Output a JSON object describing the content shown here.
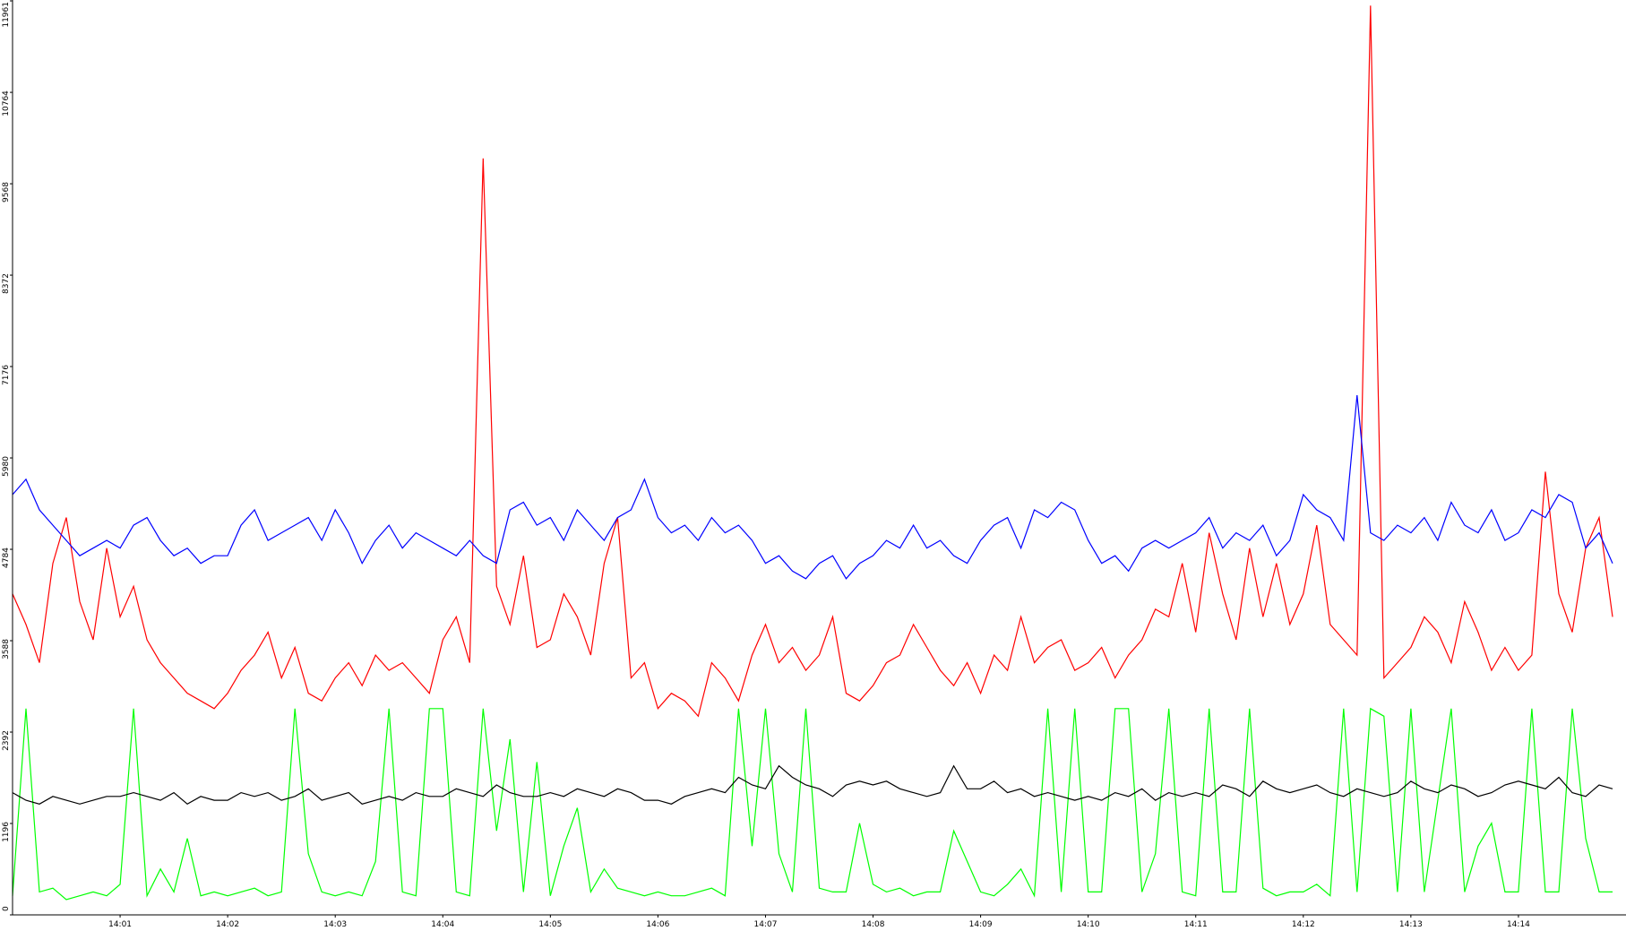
{
  "chart_data": {
    "type": "line",
    "categories": [
      null,
      null,
      null,
      null,
      null,
      null,
      null,
      null,
      "14:01",
      null,
      null,
      null,
      null,
      null,
      null,
      null,
      "14:02",
      null,
      null,
      null,
      null,
      null,
      null,
      null,
      "14:03",
      null,
      null,
      null,
      null,
      null,
      null,
      null,
      "14:04",
      null,
      null,
      null,
      null,
      null,
      null,
      null,
      "14:05",
      null,
      null,
      null,
      null,
      null,
      null,
      null,
      "14:06",
      null,
      null,
      null,
      null,
      null,
      null,
      null,
      "14:07",
      null,
      null,
      null,
      null,
      null,
      null,
      null,
      "14:08",
      null,
      null,
      null,
      null,
      null,
      null,
      null,
      "14:09",
      null,
      null,
      null,
      null,
      null,
      null,
      null,
      "14:10",
      null,
      null,
      null,
      null,
      null,
      null,
      null,
      "14:11",
      null,
      null,
      null,
      null,
      null,
      null,
      null,
      "14:12",
      null,
      null,
      null,
      null,
      null,
      null,
      null,
      "14:13",
      null,
      null,
      null,
      null,
      null,
      null,
      null,
      "14:14",
      null,
      null,
      null,
      null,
      null,
      null,
      null
    ],
    "series": [
      {
        "color": "#00ff00",
        "values": [
          250,
          2700,
          300,
          350,
          200,
          250,
          300,
          250,
          400,
          2700,
          250,
          600,
          300,
          1000,
          250,
          300,
          250,
          300,
          350,
          250,
          300,
          2700,
          800,
          300,
          250,
          300,
          250,
          700,
          2700,
          300,
          250,
          2700,
          2700,
          300,
          250,
          2700,
          1100,
          2300,
          300,
          2000,
          250,
          900,
          1400,
          300,
          600,
          350,
          300,
          250,
          300,
          250,
          250,
          300,
          350,
          250,
          2700,
          900,
          2700,
          800,
          300,
          2700,
          350,
          300,
          300,
          1200,
          400,
          300,
          350,
          250,
          300,
          300,
          1100,
          700,
          300,
          250,
          400,
          600,
          250,
          2700,
          300,
          2700,
          300,
          300,
          2700,
          2700,
          300,
          800,
          2700,
          300,
          250,
          2700,
          300,
          300,
          2700,
          350,
          250,
          300,
          300,
          400,
          250,
          2700,
          300,
          2700,
          2600,
          300,
          2700,
          300,
          1500,
          2700,
          300,
          900,
          1200,
          300,
          300,
          2700,
          300,
          300,
          2700,
          1000,
          300,
          300
        ]
      },
      {
        "color": "#000000",
        "values": [
          1600,
          1500,
          1450,
          1550,
          1500,
          1450,
          1500,
          1550,
          1550,
          1600,
          1550,
          1500,
          1600,
          1450,
          1550,
          1500,
          1500,
          1600,
          1550,
          1600,
          1500,
          1550,
          1650,
          1500,
          1550,
          1600,
          1450,
          1500,
          1550,
          1500,
          1600,
          1550,
          1550,
          1650,
          1600,
          1550,
          1700,
          1600,
          1550,
          1550,
          1600,
          1550,
          1650,
          1600,
          1550,
          1650,
          1600,
          1500,
          1500,
          1450,
          1550,
          1600,
          1650,
          1600,
          1800,
          1700,
          1650,
          1950,
          1800,
          1700,
          1650,
          1550,
          1700,
          1750,
          1700,
          1750,
          1650,
          1600,
          1550,
          1600,
          1950,
          1650,
          1650,
          1750,
          1600,
          1650,
          1550,
          1600,
          1550,
          1500,
          1550,
          1500,
          1600,
          1550,
          1650,
          1500,
          1600,
          1550,
          1600,
          1550,
          1700,
          1650,
          1550,
          1750,
          1650,
          1600,
          1650,
          1700,
          1600,
          1550,
          1650,
          1600,
          1550,
          1600,
          1750,
          1650,
          1600,
          1700,
          1650,
          1550,
          1600,
          1700,
          1750,
          1700,
          1650,
          1800,
          1600,
          1550,
          1700,
          1650
        ]
      },
      {
        "color": "#ff0000",
        "values": [
          4200,
          3800,
          3300,
          4600,
          5200,
          4100,
          3600,
          4800,
          3900,
          4300,
          3600,
          3300,
          3100,
          2900,
          2800,
          2700,
          2900,
          3200,
          3400,
          3700,
          3100,
          3500,
          2900,
          2800,
          3100,
          3300,
          3000,
          3400,
          3200,
          3300,
          3100,
          2900,
          3600,
          3900,
          3300,
          9900,
          4300,
          3800,
          4700,
          3500,
          3600,
          4200,
          3900,
          3400,
          4600,
          5200,
          3100,
          3300,
          2700,
          2900,
          2800,
          2600,
          3300,
          3100,
          2800,
          3400,
          3800,
          3300,
          3500,
          3200,
          3400,
          3900,
          2900,
          2800,
          3000,
          3300,
          3400,
          3800,
          3500,
          3200,
          3000,
          3300,
          2900,
          3400,
          3200,
          3900,
          3300,
          3500,
          3600,
          3200,
          3300,
          3500,
          3100,
          3400,
          3600,
          4000,
          3900,
          4600,
          3700,
          5000,
          4200,
          3600,
          4800,
          3900,
          4600,
          3800,
          4200,
          5100,
          3800,
          3600,
          3400,
          11900,
          3100,
          3300,
          3500,
          3900,
          3700,
          3300,
          4100,
          3700,
          3200,
          3500,
          3200,
          3400,
          5800,
          4200,
          3700,
          4800,
          5200,
          3900
        ]
      },
      {
        "color": "#0000ff",
        "values": [
          5500,
          5700,
          5300,
          5100,
          4900,
          4700,
          4800,
          4900,
          4800,
          5100,
          5200,
          4900,
          4700,
          4800,
          4600,
          4700,
          4700,
          5100,
          5300,
          4900,
          5000,
          5100,
          5200,
          4900,
          5300,
          5000,
          4600,
          4900,
          5100,
          4800,
          5000,
          4900,
          4800,
          4700,
          4900,
          4700,
          4600,
          5300,
          5400,
          5100,
          5200,
          4900,
          5300,
          5100,
          4900,
          5200,
          5300,
          5700,
          5200,
          5000,
          5100,
          4900,
          5200,
          5000,
          5100,
          4900,
          4600,
          4700,
          4500,
          4400,
          4600,
          4700,
          4400,
          4600,
          4700,
          4900,
          4800,
          5100,
          4800,
          4900,
          4700,
          4600,
          4900,
          5100,
          5200,
          4800,
          5300,
          5200,
          5400,
          5300,
          4900,
          4600,
          4700,
          4500,
          4800,
          4900,
          4800,
          4900,
          5000,
          5200,
          4800,
          5000,
          4900,
          5100,
          4700,
          4900,
          5500,
          5300,
          5200,
          4900,
          6800,
          5000,
          4900,
          5100,
          5000,
          5200,
          4900,
          5400,
          5100,
          5000,
          5300,
          4900,
          5000,
          5300,
          5200,
          5500,
          5400,
          4800,
          5000,
          4600
        ]
      }
    ],
    "ylim": [
      0,
      11961
    ],
    "yticks": [
      0,
      1196,
      2392,
      3588,
      4784,
      5980,
      7176,
      8372,
      9568,
      10764,
      11961
    ]
  }
}
